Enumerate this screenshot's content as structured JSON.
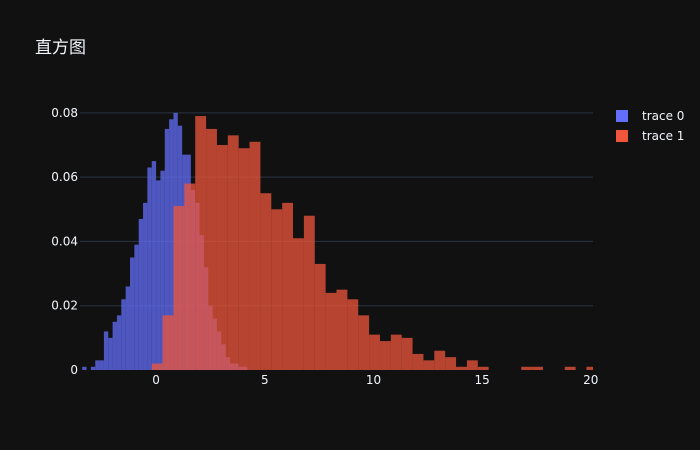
{
  "chart_data": {
    "type": "bar",
    "title": "直方图",
    "xlim": [
      -3.5,
      20.1
    ],
    "ylim": [
      0,
      0.084
    ],
    "x_ticks": [
      0,
      5,
      10,
      15,
      20
    ],
    "y_ticks": [
      0,
      0.02,
      0.04,
      0.06,
      0.08
    ],
    "x_tick_labels": [
      "0",
      "5",
      "10",
      "15",
      "20"
    ],
    "y_tick_labels": [
      "0",
      "0.02",
      "0.04",
      "0.06",
      "0.08"
    ],
    "grid": true,
    "legend_position": "top-right",
    "barmode": "overlay",
    "series": [
      {
        "name": "trace 0",
        "color": "#636efa",
        "bins": [
          [
            -3.4,
            -3.2,
            0.001
          ],
          [
            -3.0,
            -2.8,
            0.001
          ],
          [
            -2.8,
            -2.6,
            0.003
          ],
          [
            -2.6,
            -2.4,
            0.003
          ],
          [
            -2.4,
            -2.2,
            0.012
          ],
          [
            -2.2,
            -2.0,
            0.01
          ],
          [
            -2.0,
            -1.8,
            0.015
          ],
          [
            -1.8,
            -1.6,
            0.017
          ],
          [
            -1.6,
            -1.4,
            0.022
          ],
          [
            -1.4,
            -1.2,
            0.026
          ],
          [
            -1.2,
            -1.0,
            0.035
          ],
          [
            -1.0,
            -0.8,
            0.039
          ],
          [
            -0.8,
            -0.6,
            0.047
          ],
          [
            -0.6,
            -0.4,
            0.052
          ],
          [
            -0.4,
            -0.2,
            0.063
          ],
          [
            -0.2,
            0.0,
            0.065
          ],
          [
            0.0,
            0.2,
            0.059
          ],
          [
            0.2,
            0.4,
            0.062
          ],
          [
            0.4,
            0.6,
            0.075
          ],
          [
            0.6,
            0.8,
            0.078
          ],
          [
            0.8,
            1.0,
            0.08
          ],
          [
            1.0,
            1.2,
            0.076
          ],
          [
            1.2,
            1.4,
            0.067
          ],
          [
            1.4,
            1.6,
            0.067
          ],
          [
            1.6,
            1.8,
            0.056
          ],
          [
            1.8,
            2.0,
            0.052
          ],
          [
            2.0,
            2.2,
            0.042
          ],
          [
            2.2,
            2.4,
            0.032
          ],
          [
            2.4,
            2.6,
            0.02
          ],
          [
            2.6,
            2.8,
            0.016
          ],
          [
            2.8,
            3.0,
            0.012
          ],
          [
            3.0,
            3.2,
            0.008
          ],
          [
            3.2,
            3.4,
            0.004
          ],
          [
            3.4,
            3.6,
            0.002
          ],
          [
            3.6,
            3.8,
            0.002
          ],
          [
            3.8,
            4.0,
            0.001
          ],
          [
            4.0,
            4.2,
            0.001
          ]
        ]
      },
      {
        "name": "trace 1",
        "color": "#ef553b",
        "bins": [
          [
            -0.2,
            0.3,
            0.002
          ],
          [
            0.3,
            0.8,
            0.017
          ],
          [
            0.8,
            1.3,
            0.051
          ],
          [
            1.3,
            1.8,
            0.058
          ],
          [
            1.8,
            2.3,
            0.079
          ],
          [
            2.3,
            2.8,
            0.075
          ],
          [
            2.8,
            3.3,
            0.07
          ],
          [
            3.3,
            3.8,
            0.073
          ],
          [
            3.8,
            4.3,
            0.069
          ],
          [
            4.3,
            4.8,
            0.071
          ],
          [
            4.8,
            5.3,
            0.055
          ],
          [
            5.3,
            5.8,
            0.05
          ],
          [
            5.8,
            6.3,
            0.052
          ],
          [
            6.3,
            6.8,
            0.041
          ],
          [
            6.8,
            7.3,
            0.048
          ],
          [
            7.3,
            7.8,
            0.033
          ],
          [
            7.8,
            8.3,
            0.024
          ],
          [
            8.3,
            8.8,
            0.025
          ],
          [
            8.8,
            9.3,
            0.022
          ],
          [
            9.3,
            9.8,
            0.017
          ],
          [
            9.8,
            10.3,
            0.011
          ],
          [
            10.3,
            10.8,
            0.009
          ],
          [
            10.8,
            11.3,
            0.011
          ],
          [
            11.3,
            11.8,
            0.01
          ],
          [
            11.8,
            12.3,
            0.005
          ],
          [
            12.3,
            12.8,
            0.003
          ],
          [
            12.8,
            13.3,
            0.006
          ],
          [
            13.3,
            13.8,
            0.004
          ],
          [
            13.8,
            14.3,
            0.001
          ],
          [
            14.3,
            14.8,
            0.003
          ],
          [
            14.8,
            15.3,
            0.001
          ],
          [
            16.8,
            17.3,
            0.001
          ],
          [
            17.3,
            17.8,
            0.001
          ],
          [
            18.8,
            19.3,
            0.001
          ],
          [
            19.8,
            20.3,
            0.001
          ]
        ]
      }
    ]
  }
}
